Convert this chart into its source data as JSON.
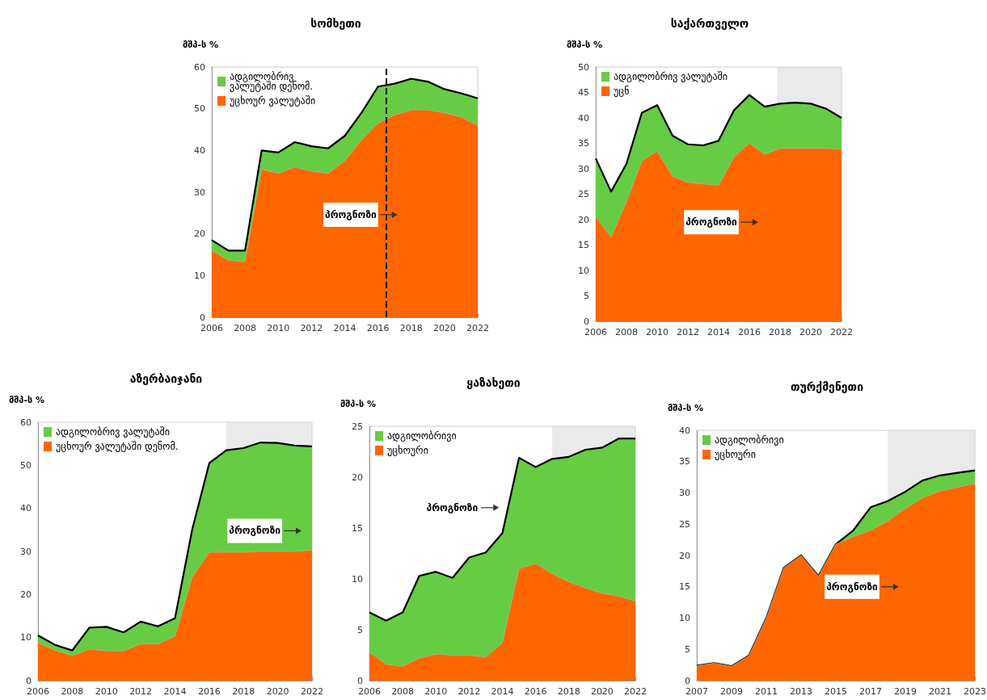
{
  "chart_data": [
    {
      "type": "area",
      "title": "სომხეთი",
      "ylabel": "მშპ-ს %",
      "stacked": true,
      "legend": "top left",
      "grid": false,
      "x": [
        2006,
        2007,
        2008,
        2009,
        2010,
        2011,
        2012,
        2013,
        2014,
        2015,
        2016,
        2017,
        2018,
        2019,
        2020,
        2021,
        2022
      ],
      "xlim": [
        2006,
        2022
      ],
      "xticks": [
        2006,
        2008,
        2010,
        2012,
        2014,
        2016,
        2018,
        2020,
        2022
      ],
      "ylim": [
        0,
        60
      ],
      "yticks": [
        0,
        10,
        20,
        30,
        40,
        50,
        60
      ],
      "series": [
        {
          "name": "უცხოურ ვალუტაში",
          "color": "#ff6600",
          "values": [
            16,
            13.7,
            13.3,
            35.5,
            34.5,
            36,
            35,
            34.5,
            37.5,
            42.5,
            46.5,
            48.5,
            49.7,
            49.7,
            49,
            48,
            46
          ]
        },
        {
          "name": "ადგილობრივ ვალუტაში დენომ.",
          "color": "#66cc44",
          "values": [
            2.5,
            2.3,
            2.7,
            4.5,
            5,
            6,
            6,
            6,
            6,
            6.5,
            8.8,
            7.5,
            7.5,
            6.8,
            5.7,
            5.7,
            6.5
          ]
        }
      ],
      "ref_lines": [
        {
          "axis": "x",
          "value": 2016.5,
          "line_style": "dashed",
          "color": "#000000"
        }
      ],
      "annotations": [
        "პროგნოზი"
      ]
    },
    {
      "type": "area",
      "title": "საქართველო",
      "ylabel": "მშპ-ს %",
      "stacked": true,
      "legend": "top left",
      "grid": false,
      "x": [
        2006,
        2007,
        2008,
        2009,
        2010,
        2011,
        2012,
        2013,
        2014,
        2015,
        2016,
        2017,
        2018,
        2019,
        2020,
        2021,
        2022
      ],
      "xlim": [
        2006,
        2022
      ],
      "xticks": [
        2006,
        2008,
        2010,
        2012,
        2014,
        2016,
        2018,
        2020,
        2022
      ],
      "ylim": [
        0,
        50
      ],
      "yticks": [
        0,
        5,
        10,
        15,
        20,
        25,
        30,
        35,
        40,
        45,
        50
      ],
      "series": [
        {
          "name": "უცნ",
          "color": "#ff6600",
          "values": [
            20.5,
            16.5,
            23.5,
            31.5,
            33.5,
            28.5,
            27.3,
            27,
            26.7,
            32.3,
            35,
            32.8,
            34,
            34,
            34,
            34,
            33.8
          ]
        },
        {
          "name": "ადგილობრივ ვალუტაში",
          "color": "#66cc44",
          "values": [
            11.5,
            9,
            7.5,
            9.5,
            9,
            8,
            7.5,
            7.6,
            8.8,
            9.2,
            9.5,
            9.4,
            8.8,
            9,
            8.8,
            7.8,
            6.2
          ]
        }
      ],
      "bands": [
        {
          "axis": "x",
          "from": 2017.8,
          "to": 2022,
          "color": "#d9d9d9"
        }
      ],
      "annotations": [
        "პროგნოზი"
      ]
    },
    {
      "type": "area",
      "title": "აზერბაიჯანი",
      "ylabel": "მშპ-ს %",
      "stacked": true,
      "legend": "top left",
      "grid": false,
      "x": [
        2006,
        2007,
        2008,
        2009,
        2010,
        2011,
        2012,
        2013,
        2014,
        2015,
        2016,
        2017,
        2018,
        2019,
        2020,
        2021,
        2022
      ],
      "xlim": [
        2006,
        2022
      ],
      "xticks": [
        2006,
        2008,
        2010,
        2012,
        2014,
        2016,
        2018,
        2020,
        2022
      ],
      "ylim": [
        0,
        60
      ],
      "yticks": [
        0,
        10,
        20,
        30,
        40,
        50,
        60
      ],
      "series": [
        {
          "name": "უცხოურ ვალუტაში დენომ.",
          "color": "#ff6600",
          "values": [
            8.8,
            7,
            5.8,
            7.3,
            6.9,
            6.9,
            8.5,
            8.5,
            10.3,
            24,
            29.8,
            29.8,
            29.8,
            30,
            30,
            30,
            30.3
          ]
        },
        {
          "name": "ადგილობრივ ვალუტაში",
          "color": "#66cc44",
          "values": [
            1.7,
            1.3,
            1.2,
            5,
            5.6,
            4.3,
            5.2,
            4.1,
            4.2,
            11,
            20.7,
            23.7,
            24.2,
            25.3,
            25.2,
            24.6,
            24.1
          ]
        }
      ],
      "bands": [
        {
          "axis": "x",
          "from": 2017,
          "to": 2022,
          "color": "#d9d9d9"
        }
      ],
      "annotations": [
        "პროგნოზი"
      ]
    },
    {
      "type": "area",
      "title": "ყაზახეთი",
      "ylabel": "მშპ-ს %",
      "stacked": true,
      "legend": "top left",
      "grid": false,
      "x": [
        2006,
        2007,
        2008,
        2009,
        2010,
        2011,
        2012,
        2013,
        2014,
        2015,
        2016,
        2017,
        2018,
        2019,
        2020,
        2021,
        2022
      ],
      "xlim": [
        2006,
        2022
      ],
      "xticks": [
        2006,
        2008,
        2010,
        2012,
        2014,
        2016,
        2018,
        2020,
        2022
      ],
      "ylim": [
        0,
        25
      ],
      "yticks": [
        0,
        5,
        10,
        15,
        20,
        25
      ],
      "series": [
        {
          "name": "უცხოური",
          "color": "#ff6600",
          "values": [
            2.8,
            1.6,
            1.4,
            2.2,
            2.6,
            2.5,
            2.5,
            2.3,
            3.7,
            11,
            11.5,
            10.5,
            9.7,
            9.1,
            8.6,
            8.3,
            7.8
          ]
        },
        {
          "name": "ადგილობრივი",
          "color": "#66cc44",
          "values": [
            3.9,
            4.3,
            5.3,
            8.1,
            8.1,
            7.6,
            9.6,
            10.3,
            10.8,
            10.9,
            9.5,
            11.3,
            12.3,
            13.6,
            14.3,
            15.5,
            16
          ]
        }
      ],
      "bands": [
        {
          "axis": "x",
          "from": 2017,
          "to": 2022,
          "color": "#d9d9d9"
        }
      ],
      "annotations": [
        "პროგნოზი"
      ]
    },
    {
      "type": "area",
      "title": "თურქმენეთი",
      "ylabel": "მშპ-ს %",
      "stacked": true,
      "legend": "top left",
      "grid": false,
      "x": [
        2007,
        2008,
        2009,
        2010,
        2011,
        2012,
        2013,
        2014,
        2015,
        2016,
        2017,
        2018,
        2019,
        2020,
        2021,
        2022,
        2023
      ],
      "xlim": [
        2007,
        2023
      ],
      "xticks": [
        2007,
        2009,
        2011,
        2013,
        2015,
        2017,
        2019,
        2021,
        2023
      ],
      "ylim": [
        0,
        40
      ],
      "yticks": [
        0,
        5,
        10,
        15,
        20,
        25,
        30,
        35,
        40
      ],
      "series": [
        {
          "name": "უცხოური",
          "color": "#ff6600",
          "values": [
            2.4,
            2.8,
            2.3,
            4,
            10,
            18,
            20,
            16.7,
            21.8,
            23,
            24,
            25.5,
            27.5,
            29.2,
            30.3,
            30.9,
            31.5
          ]
        },
        {
          "name": "ადგილობრივი",
          "color": "#66cc44",
          "values": [
            0,
            0,
            0,
            0,
            0,
            0,
            0,
            0,
            0,
            1,
            3.7,
            3.2,
            2.7,
            2.8,
            2.5,
            2.3,
            2.1
          ]
        }
      ],
      "bands": [
        {
          "axis": "x",
          "from": 2018,
          "to": 2023,
          "color": "#d9d9d9"
        }
      ],
      "annotations": [
        "პროგნოზი"
      ]
    }
  ]
}
